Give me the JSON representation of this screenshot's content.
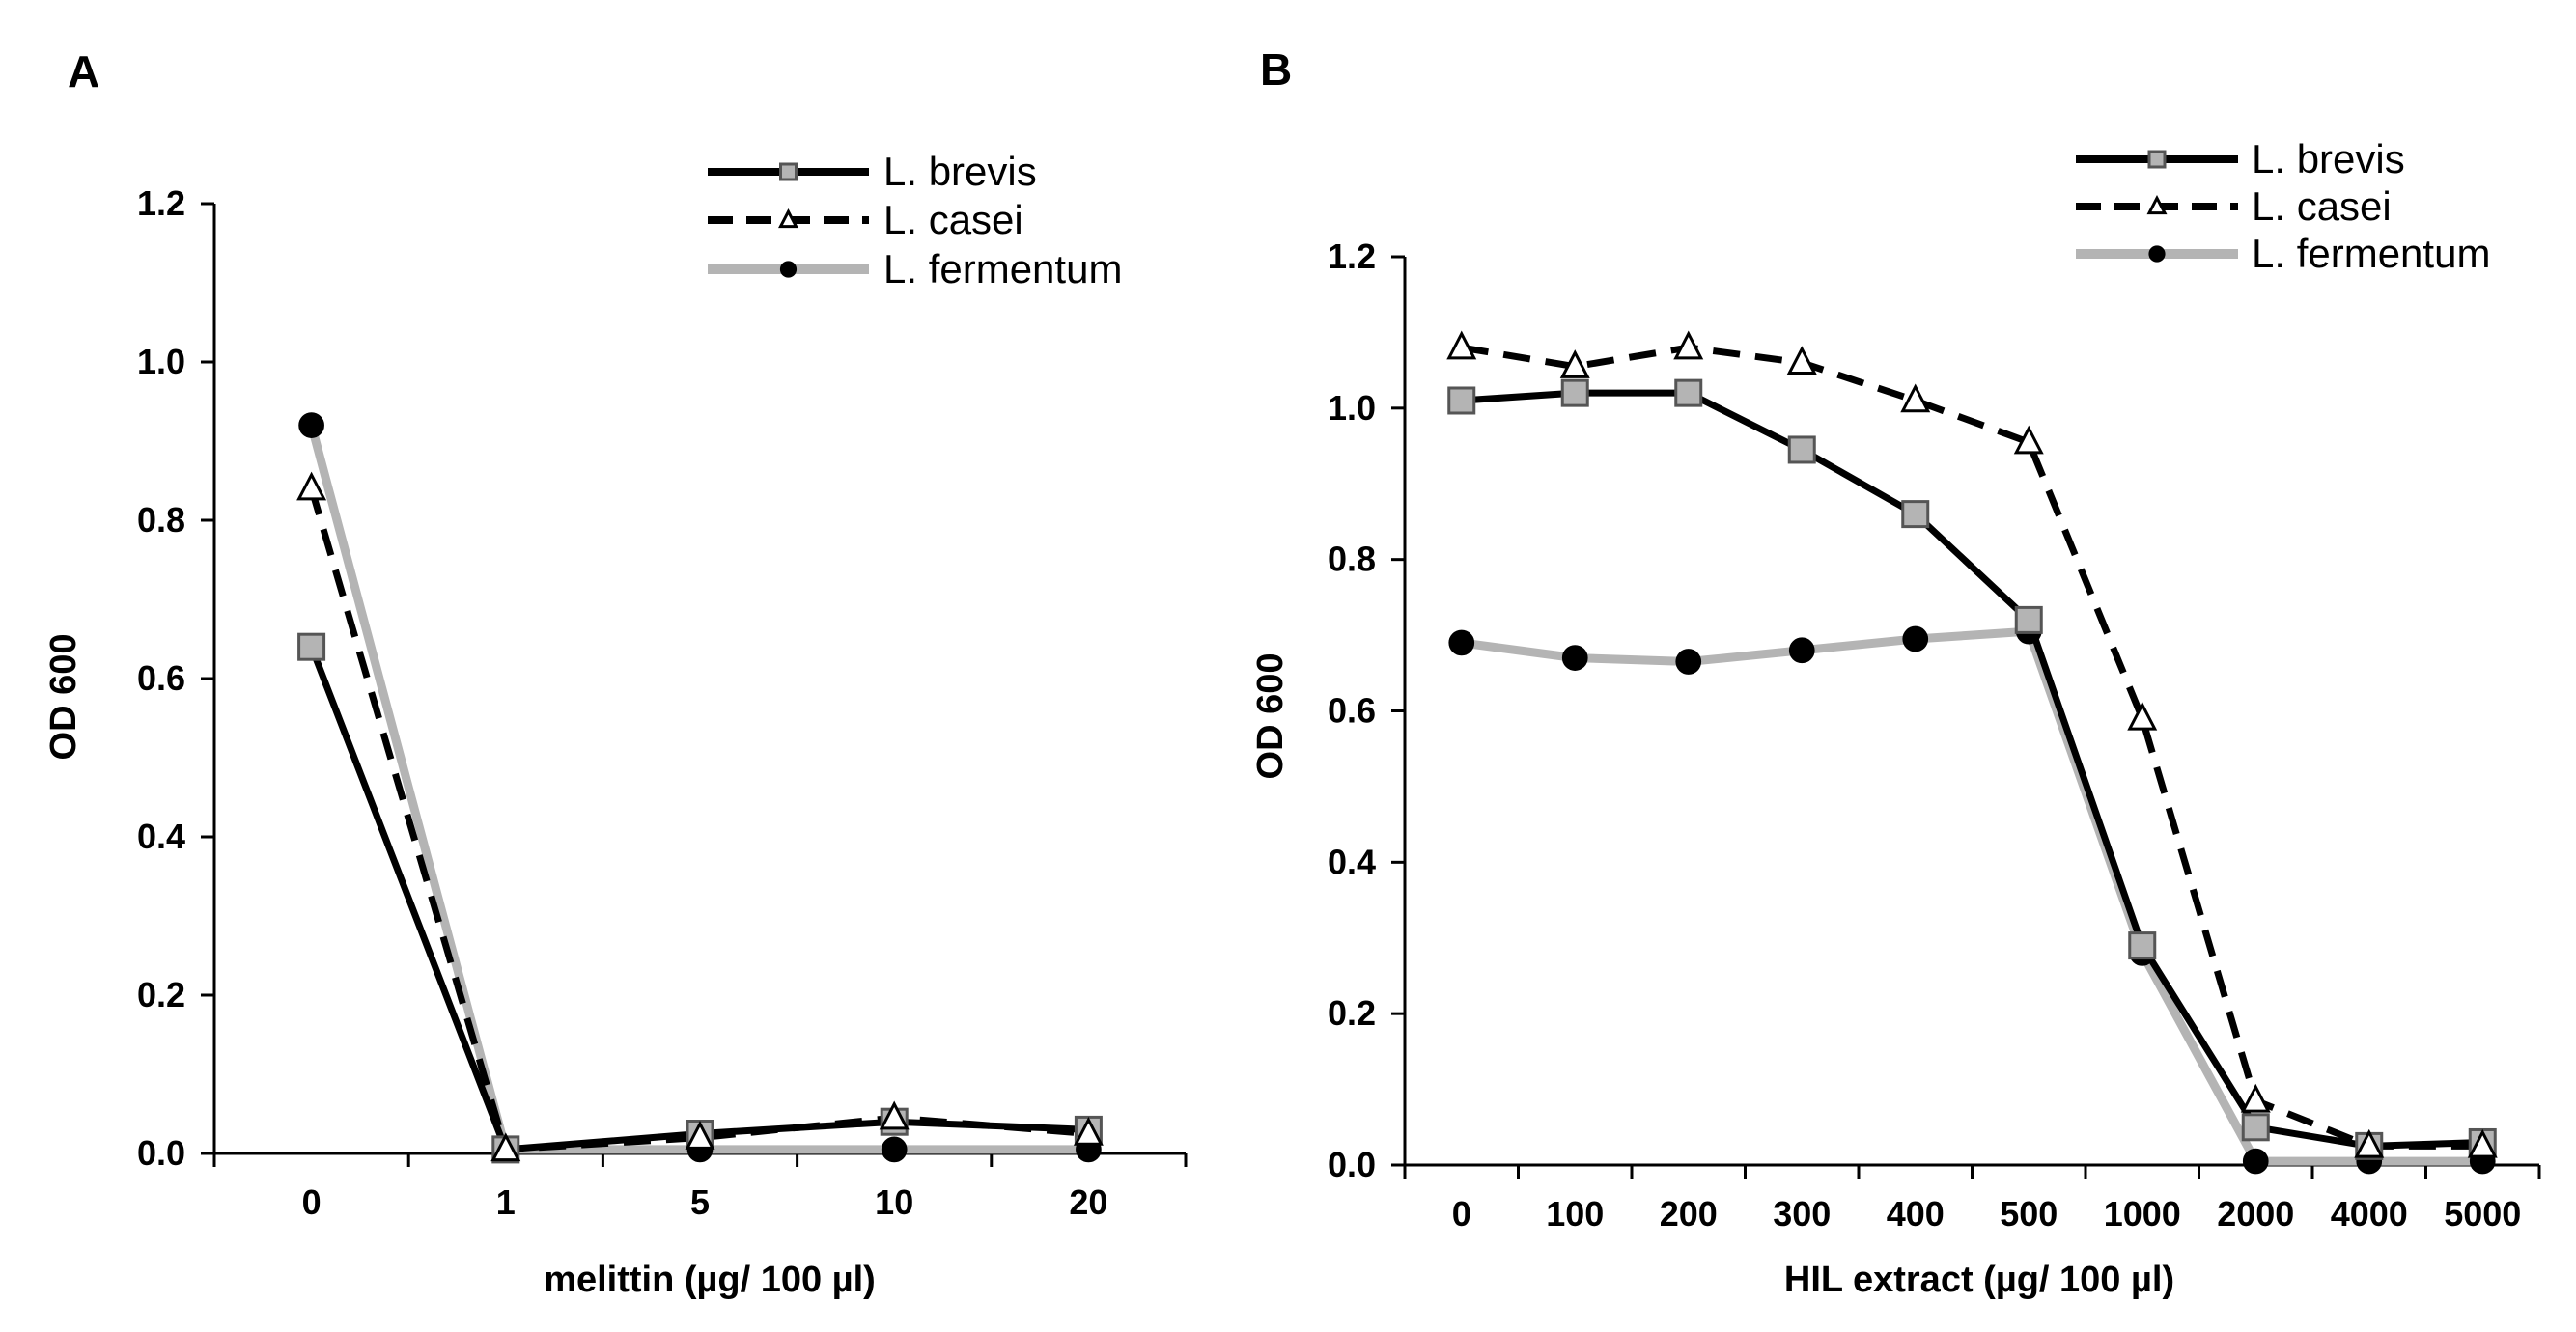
{
  "chart_data": [
    {
      "type": "line",
      "panel": "A",
      "title": "",
      "xlabel": "melittin (µg/ 100 µl)",
      "ylabel": "OD 600",
      "categories": [
        "0",
        "1",
        "5",
        "10",
        "20"
      ],
      "ylim": [
        0,
        1.2
      ],
      "yticks": [
        "0.0",
        "0.2",
        "0.4",
        "0.6",
        "0.8",
        "1.0",
        "1.2"
      ],
      "legend_position": "top-right",
      "series": [
        {
          "name": "L. brevis",
          "values": [
            0.64,
            0.005,
            0.025,
            0.04,
            0.03
          ],
          "color": "#000000",
          "dash": "solid",
          "marker": "square",
          "marker_fill": "#b4b4b4"
        },
        {
          "name": "L. casei",
          "values": [
            0.84,
            0.005,
            0.02,
            0.045,
            0.025
          ],
          "color": "#000000",
          "dash": "dashed",
          "marker": "triangle",
          "marker_fill": "#ffffff"
        },
        {
          "name": "L. fermentum",
          "values": [
            0.92,
            0.005,
            0.005,
            0.005,
            0.005
          ],
          "color": "#b4b4b4",
          "dash": "solid",
          "marker": "circle",
          "marker_fill": "#000000"
        }
      ]
    },
    {
      "type": "line",
      "panel": "B",
      "title": "",
      "xlabel": "HIL extract (µg/ 100 µl)",
      "ylabel": "OD 600",
      "categories": [
        "0",
        "100",
        "200",
        "300",
        "400",
        "500",
        "1000",
        "2000",
        "4000",
        "5000"
      ],
      "ylim": [
        0,
        1.2
      ],
      "yticks": [
        "0.0",
        "0.2",
        "0.4",
        "0.6",
        "0.8",
        "1.0",
        "1.2"
      ],
      "legend_position": "top-right",
      "series": [
        {
          "name": "L. brevis",
          "values": [
            1.01,
            1.02,
            1.02,
            0.945,
            0.86,
            0.72,
            0.29,
            0.05,
            0.025,
            0.03
          ],
          "color": "#000000",
          "dash": "solid",
          "marker": "square",
          "marker_fill": "#b4b4b4"
        },
        {
          "name": "L. casei",
          "values": [
            1.08,
            1.055,
            1.08,
            1.06,
            1.01,
            0.955,
            0.59,
            0.085,
            0.025,
            0.025
          ],
          "color": "#000000",
          "dash": "dashed",
          "marker": "triangle",
          "marker_fill": "#ffffff"
        },
        {
          "name": "L. fermentum",
          "values": [
            0.69,
            0.67,
            0.665,
            0.68,
            0.695,
            0.705,
            0.28,
            0.005,
            0.005,
            0.005
          ],
          "color": "#b4b4b4",
          "dash": "solid",
          "marker": "circle",
          "marker_fill": "#000000"
        }
      ]
    }
  ]
}
